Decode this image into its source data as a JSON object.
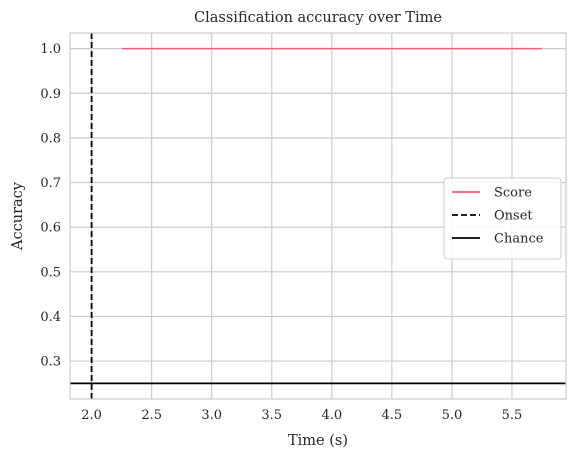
{
  "chart_data": {
    "type": "line",
    "title": "Classification accuracy over Time",
    "xlabel": "Time (s)",
    "ylabel": "Accuracy",
    "xlim": [
      1.82,
      5.95
    ],
    "ylim": [
      0.215,
      1.035
    ],
    "xticks": [
      2.0,
      2.5,
      3.0,
      3.5,
      4.0,
      4.5,
      5.0,
      5.5
    ],
    "xtick_labels": [
      "2.0",
      "2.5",
      "3.0",
      "3.5",
      "4.0",
      "4.5",
      "5.0",
      "5.5"
    ],
    "yticks": [
      0.3,
      0.4,
      0.5,
      0.6,
      0.7,
      0.8,
      0.9,
      1.0
    ],
    "ytick_labels": [
      "0.3",
      "0.4",
      "0.5",
      "0.6",
      "0.7",
      "0.8",
      "0.9",
      "1.0"
    ],
    "grid": true,
    "legend_position": "center-right",
    "series": [
      {
        "name": "Score",
        "x": [
          2.25,
          5.75
        ],
        "y": [
          1.0,
          1.0
        ],
        "color": "#ff5a78",
        "style": "solid"
      }
    ],
    "reference_lines": [
      {
        "name": "Onset",
        "orientation": "vertical",
        "value": 2.0,
        "color": "#000000",
        "style": "dashed"
      },
      {
        "name": "Chance",
        "orientation": "horizontal",
        "value": 0.25,
        "color": "#000000",
        "style": "solid"
      }
    ],
    "legend": [
      {
        "label": "Score",
        "color": "#ff5a78",
        "style": "solid"
      },
      {
        "label": "Onset",
        "color": "#000000",
        "style": "dashed"
      },
      {
        "label": "Chance",
        "color": "#000000",
        "style": "solid"
      }
    ]
  }
}
